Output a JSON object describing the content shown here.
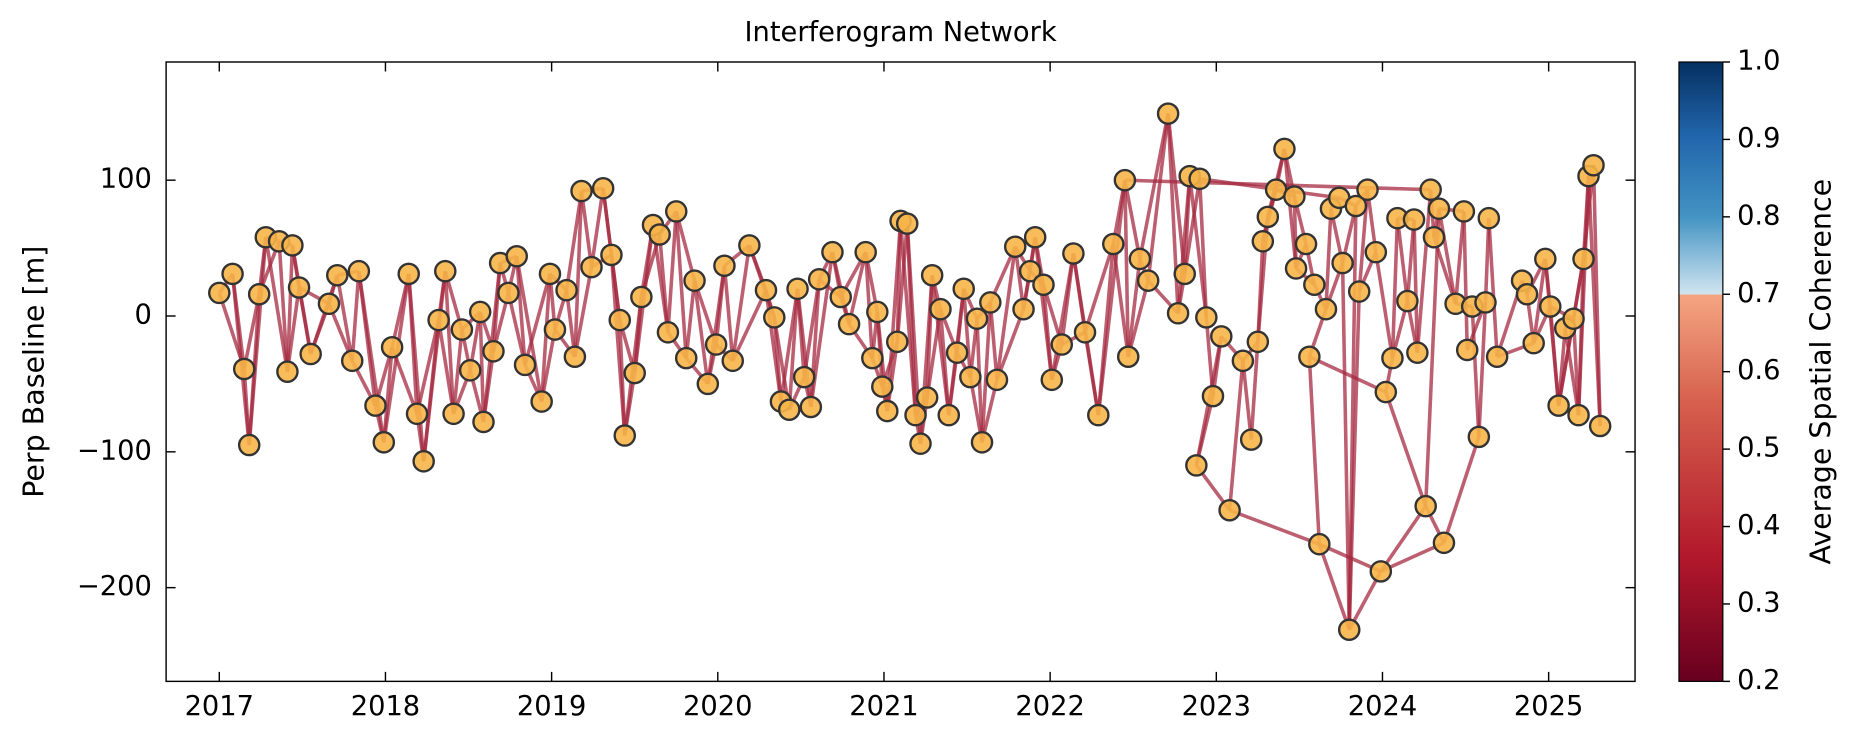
{
  "chart_data": {
    "type": "network",
    "title": "Interferogram Network",
    "ylabel": "Perp Baseline [m]",
    "colorbar_label": "Average Spatial Coherence",
    "x": [
      2017.0,
      2017.08,
      2017.15,
      2017.18,
      2017.24,
      2017.28,
      2017.36,
      2017.41,
      2017.44,
      2017.48,
      2017.55,
      2017.66,
      2017.71,
      2017.8,
      2017.84,
      2017.94,
      2017.99,
      2018.04,
      2018.14,
      2018.19,
      2018.23,
      2018.32,
      2018.36,
      2018.41,
      2018.46,
      2018.51,
      2018.57,
      2018.59,
      2018.65,
      2018.69,
      2018.74,
      2018.79,
      2018.84,
      2018.94,
      2018.99,
      2019.02,
      2019.09,
      2019.14,
      2019.18,
      2019.24,
      2019.31,
      2019.36,
      2019.41,
      2019.44,
      2019.5,
      2019.54,
      2019.61,
      2019.65,
      2019.7,
      2019.75,
      2019.81,
      2019.86,
      2019.94,
      2019.99,
      2020.04,
      2020.09,
      2020.19,
      2020.29,
      2020.34,
      2020.38,
      2020.43,
      2020.48,
      2020.52,
      2020.56,
      2020.61,
      2020.69,
      2020.74,
      2020.79,
      2020.89,
      2020.93,
      2020.96,
      2020.99,
      2021.02,
      2021.08,
      2021.1,
      2021.14,
      2021.19,
      2021.22,
      2021.26,
      2021.29,
      2021.34,
      2021.39,
      2021.44,
      2021.48,
      2021.52,
      2021.56,
      2021.59,
      2021.64,
      2021.68,
      2021.79,
      2021.84,
      2021.88,
      2021.91,
      2021.96,
      2022.01,
      2022.07,
      2022.14,
      2022.21,
      2022.29,
      2022.38,
      2022.45,
      2022.47,
      2022.54,
      2022.59,
      2022.71,
      2022.77,
      2022.81,
      2022.84,
      2022.9,
      2022.94,
      2022.98,
      2023.03,
      2022.88,
      2023.08,
      2023.16,
      2023.21,
      2023.25,
      2023.28,
      2023.31,
      2023.36,
      2023.41,
      2023.47,
      2023.48,
      2023.54,
      2023.56,
      2023.59,
      2023.62,
      2023.66,
      2023.69,
      2023.74,
      2023.76,
      2023.8,
      2023.84,
      2023.86,
      2023.91,
      2023.96,
      2023.99,
      2024.02,
      2024.06,
      2024.09,
      2024.15,
      2024.19,
      2024.21,
      2024.26,
      2024.29,
      2024.31,
      2024.34,
      2024.37,
      2024.44,
      2024.49,
      2024.51,
      2024.54,
      2024.58,
      2024.62,
      2024.64,
      2024.69,
      2024.84,
      2024.87,
      2024.91,
      2024.98,
      2025.01,
      2025.06,
      2025.1,
      2025.15,
      2025.18,
      2025.21,
      2025.24,
      2025.27,
      2025.31
    ],
    "y": [
      17,
      31,
      -39,
      -95,
      16,
      58,
      55,
      -41,
      52,
      21,
      -28,
      9,
      30,
      -33,
      33,
      -66,
      -93,
      -23,
      31,
      -72,
      -107,
      -3,
      33,
      -72,
      -10,
      -40,
      3,
      -78,
      -26,
      39,
      17,
      44,
      -36,
      -63,
      31,
      -10,
      19,
      -30,
      92,
      36,
      94,
      45,
      -3,
      -88,
      -42,
      14,
      67,
      60,
      -12,
      77,
      -31,
      26,
      -50,
      -21,
      37,
      -33,
      52,
      19,
      -1,
      -63,
      -69,
      20,
      -45,
      -67,
      27,
      47,
      14,
      -6,
      47,
      -31,
      3,
      -52,
      -70,
      -19,
      70,
      68,
      -73,
      -94,
      -60,
      30,
      5,
      -73,
      -27,
      20,
      -45,
      -2,
      -93,
      10,
      -47,
      51,
      5,
      33,
      58,
      23,
      -47,
      -21,
      46,
      -12,
      -73,
      53,
      100,
      -30,
      42,
      26,
      149,
      2,
      31,
      103,
      101,
      -1,
      -59,
      -15,
      -110,
      -143,
      -33,
      -91,
      -19,
      55,
      73,
      93,
      123,
      88,
      35,
      53,
      -30,
      23,
      -168,
      5,
      79,
      87,
      39,
      -231,
      81,
      18,
      93,
      47,
      -188,
      -56,
      -31,
      72,
      11,
      71,
      -27,
      -140,
      93,
      58,
      79,
      -167,
      9,
      77,
      -25,
      7,
      -89,
      10,
      72,
      -30,
      26,
      16,
      -20,
      42,
      7,
      -66,
      -9,
      -2,
      -73,
      42,
      103,
      111,
      -81
    ],
    "edges": [
      [
        0,
        1
      ],
      [
        0,
        2
      ],
      [
        1,
        2
      ],
      [
        1,
        3
      ],
      [
        2,
        3
      ],
      [
        2,
        4
      ],
      [
        3,
        4
      ],
      [
        3,
        5
      ],
      [
        4,
        5
      ],
      [
        4,
        6
      ],
      [
        5,
        6
      ],
      [
        5,
        7
      ],
      [
        6,
        7
      ],
      [
        6,
        8
      ],
      [
        7,
        8
      ],
      [
        7,
        9
      ],
      [
        8,
        9
      ],
      [
        8,
        10
      ],
      [
        9,
        10
      ],
      [
        9,
        11
      ],
      [
        10,
        11
      ],
      [
        10,
        12
      ],
      [
        11,
        12
      ],
      [
        11,
        13
      ],
      [
        12,
        13
      ],
      [
        12,
        14
      ],
      [
        13,
        14
      ],
      [
        13,
        15
      ],
      [
        14,
        15
      ],
      [
        14,
        16
      ],
      [
        15,
        16
      ],
      [
        15,
        17
      ],
      [
        16,
        17
      ],
      [
        16,
        18
      ],
      [
        17,
        18
      ],
      [
        17,
        19
      ],
      [
        18,
        19
      ],
      [
        18,
        20
      ],
      [
        19,
        20
      ],
      [
        19,
        21
      ],
      [
        20,
        21
      ],
      [
        20,
        22
      ],
      [
        21,
        22
      ],
      [
        21,
        23
      ],
      [
        22,
        23
      ],
      [
        22,
        24
      ],
      [
        23,
        24
      ],
      [
        23,
        25
      ],
      [
        24,
        25
      ],
      [
        24,
        26
      ],
      [
        25,
        26
      ],
      [
        25,
        27
      ],
      [
        26,
        27
      ],
      [
        26,
        28
      ],
      [
        27,
        28
      ],
      [
        27,
        29
      ],
      [
        28,
        29
      ],
      [
        28,
        30
      ],
      [
        29,
        30
      ],
      [
        29,
        31
      ],
      [
        30,
        31
      ],
      [
        30,
        32
      ],
      [
        31,
        32
      ],
      [
        31,
        33
      ],
      [
        32,
        33
      ],
      [
        32,
        34
      ],
      [
        33,
        34
      ],
      [
        33,
        35
      ],
      [
        34,
        35
      ],
      [
        34,
        36
      ],
      [
        35,
        36
      ],
      [
        35,
        37
      ],
      [
        36,
        37
      ],
      [
        36,
        38
      ],
      [
        37,
        38
      ],
      [
        37,
        39
      ],
      [
        38,
        39
      ],
      [
        38,
        40
      ],
      [
        39,
        40
      ],
      [
        39,
        41
      ],
      [
        40,
        41
      ],
      [
        40,
        42
      ],
      [
        41,
        42
      ],
      [
        41,
        43
      ],
      [
        42,
        43
      ],
      [
        42,
        44
      ],
      [
        43,
        44
      ],
      [
        43,
        45
      ],
      [
        44,
        45
      ],
      [
        44,
        46
      ],
      [
        45,
        46
      ],
      [
        45,
        47
      ],
      [
        46,
        47
      ],
      [
        46,
        48
      ],
      [
        47,
        48
      ],
      [
        47,
        49
      ],
      [
        48,
        49
      ],
      [
        48,
        50
      ],
      [
        49,
        50
      ],
      [
        49,
        51
      ],
      [
        50,
        51
      ],
      [
        50,
        52
      ],
      [
        51,
        52
      ],
      [
        51,
        53
      ],
      [
        52,
        53
      ],
      [
        52,
        54
      ],
      [
        53,
        54
      ],
      [
        53,
        55
      ],
      [
        54,
        55
      ],
      [
        54,
        56
      ],
      [
        55,
        56
      ],
      [
        55,
        57
      ],
      [
        56,
        57
      ],
      [
        56,
        58
      ],
      [
        57,
        58
      ],
      [
        57,
        59
      ],
      [
        58,
        59
      ],
      [
        58,
        60
      ],
      [
        59,
        60
      ],
      [
        59,
        61
      ],
      [
        60,
        61
      ],
      [
        60,
        62
      ],
      [
        61,
        62
      ],
      [
        61,
        63
      ],
      [
        62,
        63
      ],
      [
        62,
        64
      ],
      [
        63,
        64
      ],
      [
        63,
        65
      ],
      [
        64,
        65
      ],
      [
        64,
        66
      ],
      [
        65,
        66
      ],
      [
        65,
        67
      ],
      [
        66,
        67
      ],
      [
        66,
        68
      ],
      [
        67,
        68
      ],
      [
        67,
        69
      ],
      [
        68,
        69
      ],
      [
        68,
        70
      ],
      [
        69,
        70
      ],
      [
        69,
        71
      ],
      [
        70,
        71
      ],
      [
        70,
        72
      ],
      [
        71,
        72
      ],
      [
        71,
        73
      ],
      [
        72,
        73
      ],
      [
        72,
        74
      ],
      [
        73,
        74
      ],
      [
        73,
        75
      ],
      [
        74,
        75
      ],
      [
        74,
        76
      ],
      [
        75,
        76
      ],
      [
        75,
        77
      ],
      [
        76,
        77
      ],
      [
        76,
        78
      ],
      [
        77,
        78
      ],
      [
        77,
        79
      ],
      [
        78,
        79
      ],
      [
        78,
        80
      ],
      [
        79,
        80
      ],
      [
        79,
        81
      ],
      [
        80,
        81
      ],
      [
        80,
        82
      ],
      [
        81,
        82
      ],
      [
        81,
        83
      ],
      [
        82,
        83
      ],
      [
        82,
        84
      ],
      [
        83,
        84
      ],
      [
        83,
        85
      ],
      [
        84,
        85
      ],
      [
        84,
        86
      ],
      [
        85,
        86
      ],
      [
        85,
        87
      ],
      [
        86,
        87
      ],
      [
        86,
        88
      ],
      [
        87,
        88
      ],
      [
        87,
        89
      ],
      [
        88,
        89
      ],
      [
        88,
        90
      ],
      [
        89,
        90
      ],
      [
        89,
        91
      ],
      [
        90,
        91
      ],
      [
        90,
        92
      ],
      [
        91,
        92
      ],
      [
        91,
        93
      ],
      [
        92,
        93
      ],
      [
        92,
        94
      ],
      [
        93,
        94
      ],
      [
        93,
        95
      ],
      [
        94,
        95
      ],
      [
        94,
        96
      ],
      [
        95,
        96
      ],
      [
        95,
        97
      ],
      [
        96,
        97
      ],
      [
        96,
        98
      ],
      [
        97,
        98
      ],
      [
        97,
        99
      ],
      [
        98,
        99
      ],
      [
        98,
        100
      ],
      [
        99,
        100
      ],
      [
        99,
        101
      ],
      [
        100,
        101
      ],
      [
        100,
        102
      ],
      [
        101,
        102
      ],
      [
        101,
        103
      ],
      [
        102,
        103
      ],
      [
        102,
        104
      ],
      [
        103,
        104
      ],
      [
        103,
        105
      ],
      [
        104,
        105
      ],
      [
        104,
        106
      ],
      [
        105,
        106
      ],
      [
        105,
        107
      ],
      [
        106,
        107
      ],
      [
        106,
        108
      ],
      [
        107,
        108
      ],
      [
        107,
        109
      ],
      [
        108,
        109
      ],
      [
        109,
        110
      ],
      [
        110,
        111
      ],
      [
        110,
        112
      ],
      [
        111,
        112
      ],
      [
        112,
        113
      ],
      [
        113,
        114
      ],
      [
        111,
        114
      ],
      [
        114,
        115
      ],
      [
        115,
        116
      ],
      [
        114,
        116
      ],
      [
        116,
        117
      ],
      [
        116,
        118
      ],
      [
        117,
        118
      ],
      [
        117,
        119
      ],
      [
        118,
        119
      ],
      [
        118,
        120
      ],
      [
        119,
        120
      ],
      [
        119,
        121
      ],
      [
        120,
        121
      ],
      [
        120,
        122
      ],
      [
        121,
        122
      ],
      [
        121,
        123
      ],
      [
        122,
        123
      ],
      [
        122,
        125
      ],
      [
        123,
        125
      ],
      [
        124,
        127
      ],
      [
        125,
        127
      ],
      [
        127,
        128
      ],
      [
        128,
        129
      ],
      [
        127,
        130
      ],
      [
        128,
        130
      ],
      [
        130,
        131
      ],
      [
        129,
        132
      ],
      [
        130,
        132
      ],
      [
        131,
        132
      ],
      [
        131,
        133
      ],
      [
        132,
        134
      ],
      [
        133,
        134
      ],
      [
        133,
        135
      ],
      [
        134,
        135
      ],
      [
        135,
        138
      ],
      [
        137,
        138
      ],
      [
        138,
        139
      ],
      [
        138,
        140
      ],
      [
        139,
        140
      ],
      [
        139,
        141
      ],
      [
        140,
        141
      ],
      [
        141,
        142
      ],
      [
        140,
        142
      ],
      [
        142,
        144
      ],
      [
        143,
        147
      ],
      [
        143,
        146
      ],
      [
        144,
        145
      ],
      [
        145,
        146
      ],
      [
        145,
        148
      ],
      [
        146,
        148
      ],
      [
        146,
        149
      ],
      [
        148,
        149
      ],
      [
        148,
        151
      ],
      [
        149,
        150
      ],
      [
        150,
        153
      ],
      [
        151,
        152
      ],
      [
        152,
        153
      ],
      [
        153,
        154
      ],
      [
        154,
        155
      ],
      [
        155,
        156
      ],
      [
        156,
        157
      ],
      [
        155,
        158
      ],
      [
        157,
        158
      ],
      [
        157,
        159
      ],
      [
        158,
        159
      ],
      [
        158,
        160
      ],
      [
        159,
        160
      ],
      [
        159,
        161
      ],
      [
        160,
        161
      ],
      [
        160,
        163
      ],
      [
        161,
        162
      ],
      [
        161,
        163
      ],
      [
        162,
        163
      ],
      [
        162,
        164
      ],
      [
        163,
        164
      ],
      [
        163,
        165
      ],
      [
        164,
        165
      ],
      [
        164,
        166
      ],
      [
        165,
        166
      ],
      [
        165,
        167
      ],
      [
        166,
        167
      ],
      [
        166,
        168
      ],
      [
        167,
        168
      ],
      [
        161,
        165
      ],
      [
        100,
        144
      ],
      [
        108,
        129
      ],
      [
        113,
        126
      ],
      [
        136,
        147
      ],
      [
        126,
        131
      ],
      [
        126,
        136
      ],
      [
        131,
        136
      ],
      [
        136,
        143
      ],
      [
        124,
        126
      ],
      [
        124,
        137
      ],
      [
        137,
        143
      ],
      [
        147,
        152
      ]
    ],
    "node_color": "#f7b548",
    "edge_color": "#a52a40",
    "xlim": [
      2016.68,
      2025.52
    ],
    "ylim": [
      -269,
      187
    ],
    "xticks": [
      2017,
      2018,
      2019,
      2020,
      2021,
      2022,
      2023,
      2024,
      2025
    ],
    "yticks": [
      {
        "value": -200,
        "label": "−200"
      },
      {
        "value": -100,
        "label": "−100"
      },
      0,
      100
    ],
    "clim": [
      0.2,
      1.0
    ],
    "cticks": [
      0.2,
      0.3,
      0.4,
      0.5,
      0.6,
      0.7,
      0.8,
      0.9,
      {
        "value": 1,
        "label": "1.0"
      }
    ]
  }
}
